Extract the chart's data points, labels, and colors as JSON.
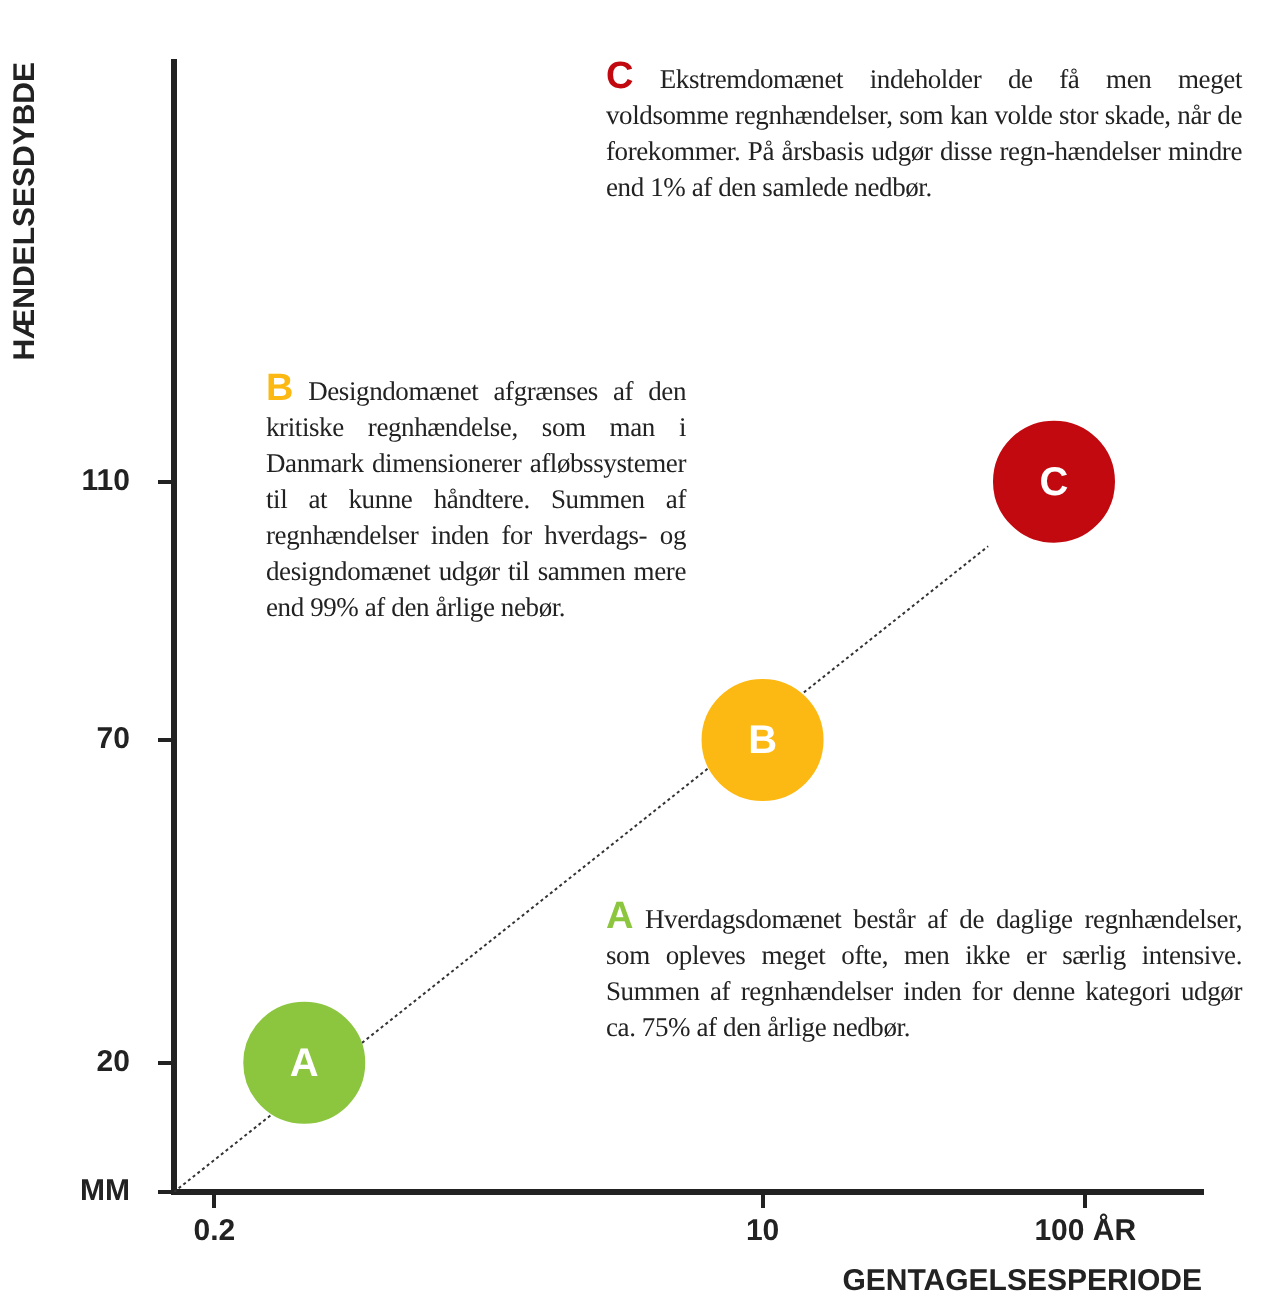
{
  "chart_data": {
    "type": "scatter",
    "xlabel": "GENTAGELSESPERIODE",
    "ylabel": "HÆNDELSESDYBDE",
    "log": "x",
    "xlim": [
      0.15,
      230
    ],
    "xticks": [
      0.2,
      10,
      {
        "value": 100,
        "label": "100 ÅR"
      }
    ],
    "ylim": [
      0,
      175
    ],
    "yticks": [
      {
        "value": 0,
        "label": "MM"
      },
      20,
      70,
      110
    ],
    "grid": false,
    "legend": false,
    "series": [
      {
        "name": "A",
        "color": "#8cc63f",
        "marker": "circle",
        "x": [
          0.38
        ],
        "values": [
          20
        ]
      },
      {
        "name": "B",
        "color": "#fdb913",
        "marker": "circle",
        "x": [
          10
        ],
        "values": [
          70
        ]
      },
      {
        "name": "C",
        "color": "#c1090f",
        "marker": "circle",
        "x": [
          80
        ],
        "values": [
          110
        ]
      },
      {
        "type": "line",
        "color": "#333333",
        "line_style": "dotted",
        "x": [
          0.15,
          50
        ],
        "values": [
          0,
          100
        ]
      }
    ],
    "annotations": [
      "A Hverdagsdomænet består af de daglige regnhændelser, som opleves meget ofte, men ikke er særlig intensive. Summen af regnhændelser inden for denne kategori udgør ca. 75% af den årlige nedbør.",
      "B Designdomænet afgrænses af den kritiske regnhændelse, som man i Danmark dimensionerer afløbssystemer til at kunne håndtere. Summen af regnhændelser inden for hverdags- og designdomænet udgør til sammen mere end 99% af den årlige nebør.",
      "C Ekstremdomænet indeholder de få men meget voldsomme regnhændelser, som kan volde stor skade, når de forekommer. På årsbasis udgør disse regn-hændelser mindre end 1% af den samlede nedbør."
    ]
  }
}
